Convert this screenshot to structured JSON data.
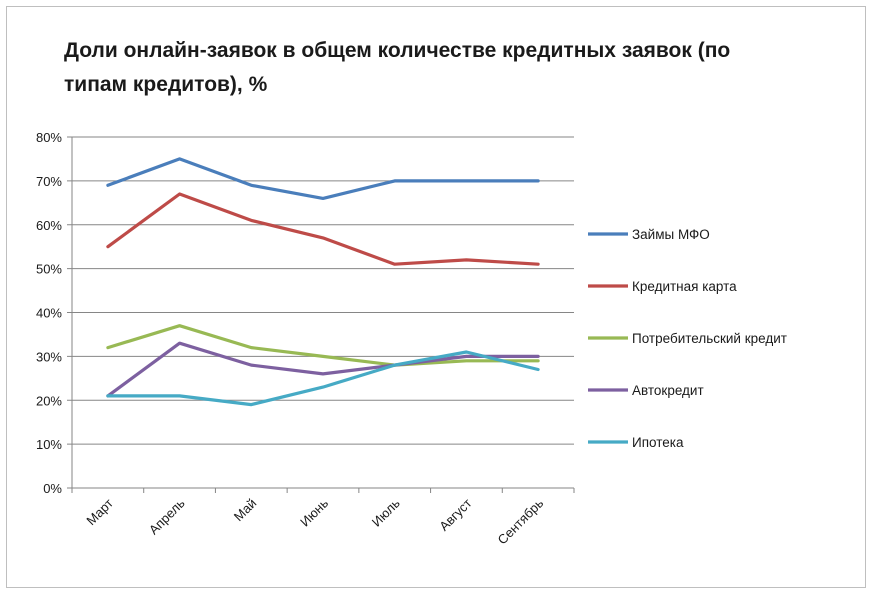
{
  "chart_data": {
    "type": "line",
    "title": "Доли онлайн-заявок в общем количестве кредитных заявок (по типам кредитов), %",
    "categories": [
      "Март",
      "Апрель",
      "Май",
      "Июнь",
      "Июль",
      "Август",
      "Сентябрь"
    ],
    "ylim": [
      0,
      80
    ],
    "yticks": [
      0,
      10,
      20,
      30,
      40,
      50,
      60,
      70,
      80
    ],
    "ytick_labels": [
      "0%",
      "10%",
      "20%",
      "30%",
      "40%",
      "50%",
      "60%",
      "70%",
      "80%"
    ],
    "grid": "horizontal",
    "legend_position": "right",
    "series": [
      {
        "name": "Займы МФО",
        "color": "#4a7ebb",
        "values": [
          69,
          75,
          69,
          66,
          70,
          70,
          70
        ]
      },
      {
        "name": "Кредитная  карта",
        "color": "#be4b48",
        "values": [
          55,
          67,
          61,
          57,
          51,
          52,
          51
        ]
      },
      {
        "name": "Потребительский  кредит",
        "color": "#98b954",
        "values": [
          32,
          37,
          32,
          30,
          28,
          29,
          29
        ]
      },
      {
        "name": "Автокредит",
        "color": "#7d60a0",
        "values": [
          21,
          33,
          28,
          26,
          28,
          30,
          30
        ]
      },
      {
        "name": "Ипотека",
        "color": "#46aac5",
        "values": [
          21,
          21,
          19,
          23,
          28,
          31,
          27
        ]
      }
    ]
  }
}
